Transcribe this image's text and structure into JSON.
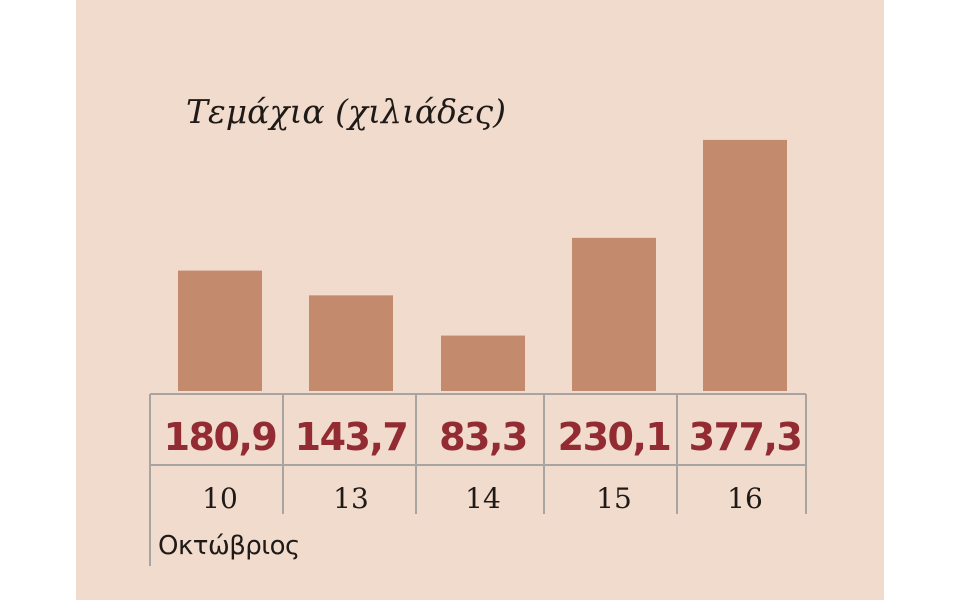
{
  "chart_data": {
    "type": "bar",
    "title": "Τεμάχια (χιλιάδες)",
    "categories": [
      "10",
      "13",
      "14",
      "15",
      "16"
    ],
    "values": [
      180.9,
      143.7,
      83.3,
      230.1,
      377.3
    ],
    "value_labels": [
      "180,9",
      "143,7",
      "83,3",
      "230,1",
      "377,3"
    ],
    "xlabel": "Οκτώβριος",
    "ylabel": "",
    "ylim": [
      0,
      400
    ],
    "grid": false,
    "colors": {
      "bar": "#c38a6e",
      "value_text": "#922b32",
      "background": "#f1dbcc",
      "table_lines": "#a8a4a2"
    }
  }
}
